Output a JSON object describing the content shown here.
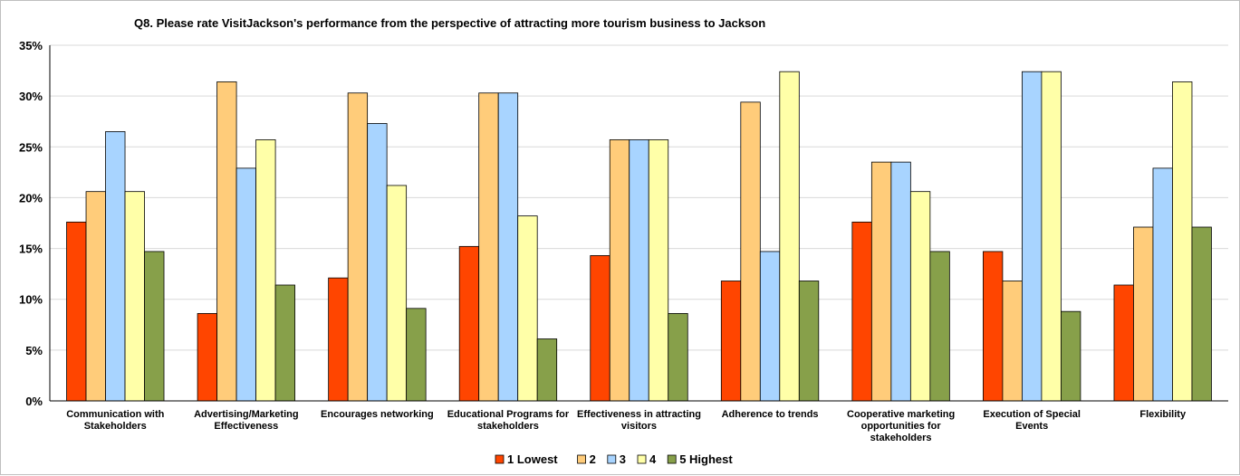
{
  "chart_data": {
    "type": "bar",
    "title": "Q8. Please rate VisitJackson's performance from the perspective of attracting more tourism business to Jackson",
    "xlabel": "",
    "ylabel": "",
    "ylim": [
      0,
      0.35
    ],
    "y_ticks": [
      0,
      0.05,
      0.1,
      0.15,
      0.2,
      0.25,
      0.3,
      0.35
    ],
    "y_tick_labels": [
      "0%",
      "5%",
      "10%",
      "15%",
      "20%",
      "25%",
      "30%",
      "35%"
    ],
    "grid": true,
    "legend_position": "bottom",
    "categories": [
      [
        "Communication with",
        "Stakeholders"
      ],
      [
        "Advertising/Marketing",
        "Effectiveness"
      ],
      [
        "Encourages networking"
      ],
      [
        "Educational Programs for",
        "stakeholders"
      ],
      [
        "Effectiveness in attracting",
        "visitors"
      ],
      [
        "Adherence to trends"
      ],
      [
        "Cooperative marketing",
        "opportunities for",
        "stakeholders"
      ],
      [
        "Execution of Special",
        "Events"
      ],
      [
        "Flexibility"
      ]
    ],
    "series": [
      {
        "name": "1 Lowest",
        "color": "#ff4500",
        "values": [
          0.176,
          0.086,
          0.121,
          0.152,
          0.143,
          0.118,
          0.176,
          0.147,
          0.114
        ]
      },
      {
        "name": "2",
        "color": "#ffcc7a",
        "values": [
          0.206,
          0.314,
          0.303,
          0.303,
          0.257,
          0.294,
          0.235,
          0.118,
          0.171
        ]
      },
      {
        "name": "3",
        "color": "#a8d4ff",
        "values": [
          0.265,
          0.229,
          0.273,
          0.303,
          0.257,
          0.147,
          0.235,
          0.324,
          0.229
        ]
      },
      {
        "name": "4",
        "color": "#ffffa8",
        "values": [
          0.206,
          0.257,
          0.212,
          0.182,
          0.257,
          0.324,
          0.206,
          0.324,
          0.314
        ]
      },
      {
        "name": "5 Highest",
        "color": "#87a04a",
        "values": [
          0.147,
          0.114,
          0.091,
          0.061,
          0.086,
          0.118,
          0.147,
          0.088,
          0.171
        ]
      }
    ]
  }
}
